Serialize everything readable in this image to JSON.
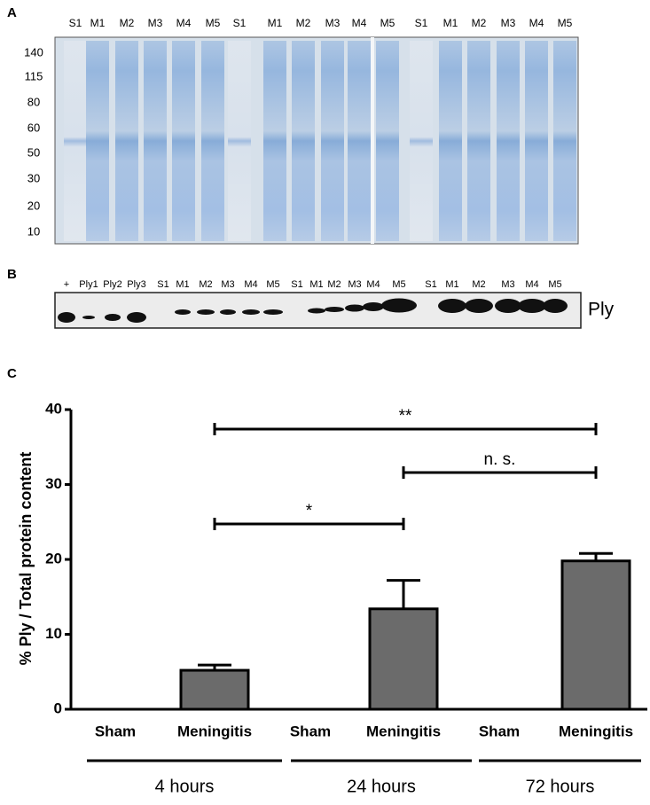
{
  "panel_a": {
    "label": "A",
    "lanes": [
      "S1",
      "M1",
      "M2",
      "M3",
      "M4",
      "M5",
      "S1",
      "M1",
      "M2",
      "M3",
      "M4",
      "M5",
      "S1",
      "M1",
      "M2",
      "M3",
      "M4",
      "M5"
    ],
    "markers": [
      140,
      115,
      80,
      60,
      50,
      30,
      20,
      10
    ]
  },
  "panel_b": {
    "label": "B",
    "lanes": [
      "+",
      "Ply1",
      "Ply2",
      "Ply3",
      "S1",
      "M1",
      "M2",
      "M3",
      "M4",
      "M5",
      "S1",
      "M1",
      "M2",
      "M3",
      "M4",
      "M5",
      "S1",
      "M1",
      "M2",
      "M3",
      "M4",
      "M5"
    ],
    "band_label": "Ply"
  },
  "chart_data": {
    "type": "bar",
    "panel": "C",
    "ylabel": "% Ply / Total protein content",
    "categories": [
      "Sham",
      "Meningitis",
      "Sham",
      "Meningitis",
      "Sham",
      "Meningitis"
    ],
    "values": [
      0,
      5.2,
      0,
      13.4,
      0,
      19.8
    ],
    "errors": [
      0,
      0.7,
      0,
      3.8,
      0,
      1.0
    ],
    "color": "#6b6b6b",
    "groups": [
      "4 hours",
      "24 hours",
      "72 hours"
    ],
    "ylim": [
      0,
      40
    ],
    "yticks": [
      0,
      10,
      20,
      30,
      40
    ],
    "comparisons": [
      {
        "from": 1,
        "to": 3,
        "label": "*"
      },
      {
        "from": 3,
        "to": 5,
        "label": "n. s."
      },
      {
        "from": 1,
        "to": 5,
        "label": "**"
      }
    ]
  }
}
